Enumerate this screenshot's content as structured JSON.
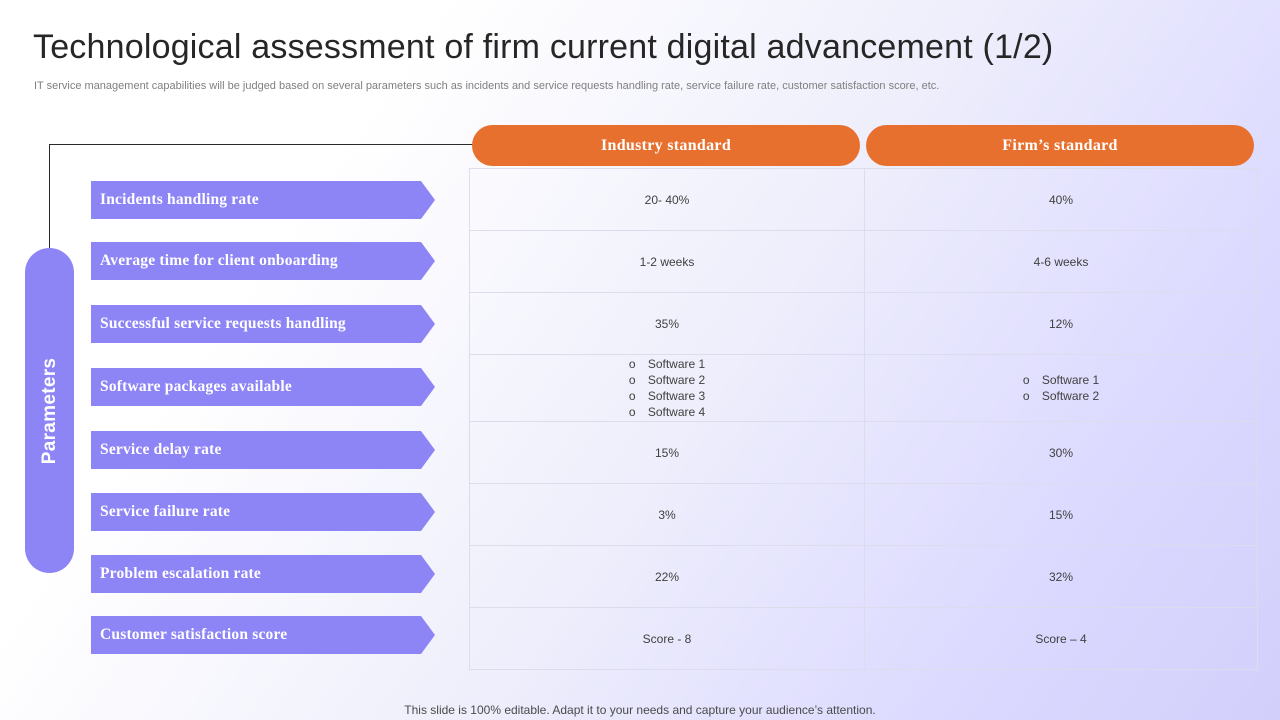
{
  "title": "Technological assessment of firm current digital advancement (1/2)",
  "subtitle": "IT service management capabilities will be judged based on several parameters such as incidents and service requests handling rate, service failure rate, customer satisfaction score, etc.",
  "parameters_label": "Parameters",
  "columns": [
    "Industry standard",
    "Firm’s standard"
  ],
  "rows": [
    {
      "label": "Incidents handling rate",
      "industry": "20- 40%",
      "firm": "40%"
    },
    {
      "label": "Average time for client onboarding",
      "industry": "1-2 weeks",
      "firm": "4-6 weeks"
    },
    {
      "label": "Successful service requests handling",
      "industry": "35%",
      "firm": "12%"
    },
    {
      "label": "Software packages available",
      "industry_list": [
        "Software 1",
        "Software 2",
        "Software 3",
        "Software 4"
      ],
      "firm_list": [
        "Software 1",
        "Software 2"
      ]
    },
    {
      "label": "Service delay rate",
      "industry": "15%",
      "firm": "30%"
    },
    {
      "label": "Service failure rate",
      "industry": "3%",
      "firm": "15%"
    },
    {
      "label": "Problem escalation rate",
      "industry": "22%",
      "firm": "32%"
    },
    {
      "label": "Customer satisfaction score",
      "industry": "Score - 8",
      "firm": "Score – 4"
    }
  ],
  "footer": "This slide is 100% editable. Adapt it to your needs and capture your audience’s attention.",
  "colors": {
    "accent_purple": "#8d84f6",
    "accent_orange": "#e8702f"
  }
}
